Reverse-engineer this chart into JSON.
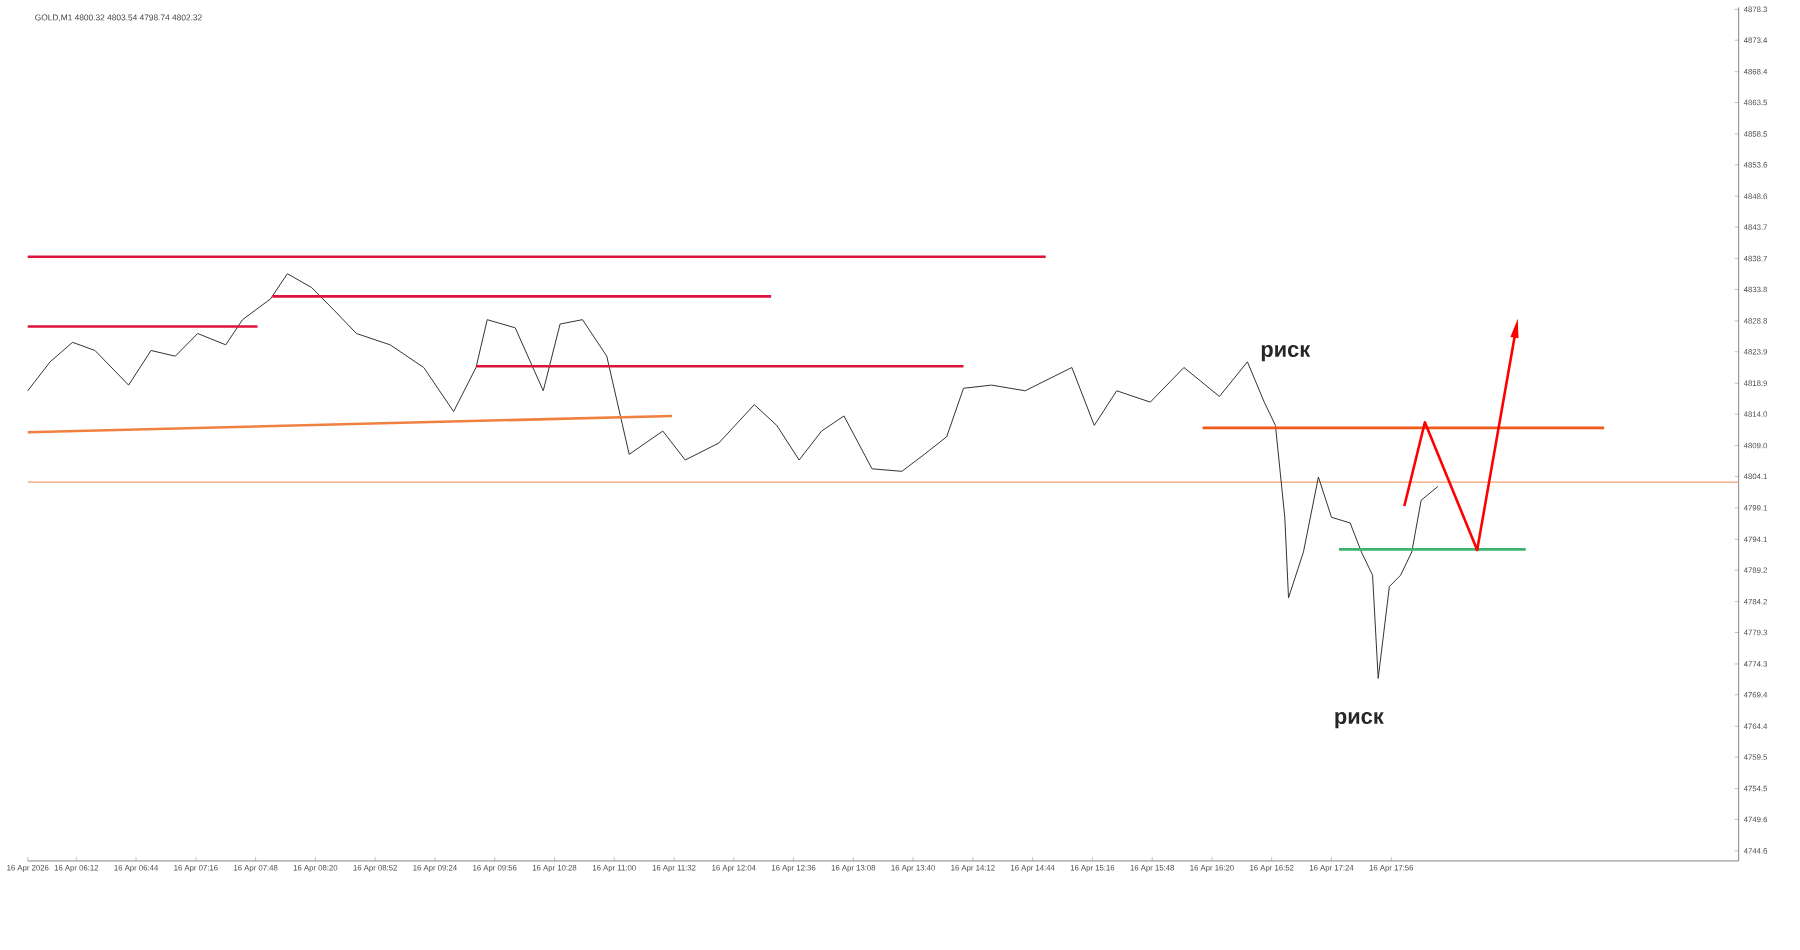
{
  "chart_data": {
    "type": "line",
    "title": "GOLD,M1 4800.32 4803.54 4798.74 4802.32",
    "xlim": [
      "2026-04-16T05:46",
      "2026-04-16T21:02"
    ],
    "ylim": [
      4743.0,
      4878.6
    ],
    "xticks": [
      {
        "value": "2026-04-16T05:46",
        "label": "16 Apr 2026"
      },
      {
        "value": "2026-04-16T06:12",
        "label": "16 Apr 06:12"
      },
      {
        "value": "2026-04-16T06:44",
        "label": "16 Apr 06:44"
      },
      {
        "value": "2026-04-16T07:16",
        "label": "16 Apr 07:16"
      },
      {
        "value": "2026-04-16T07:48",
        "label": "16 Apr 07:48"
      },
      {
        "value": "2026-04-16T08:20",
        "label": "16 Apr 08:20"
      },
      {
        "value": "2026-04-16T08:52",
        "label": "16 Apr 08:52"
      },
      {
        "value": "2026-04-16T09:24",
        "label": "16 Apr 09:24"
      },
      {
        "value": "2026-04-16T09:56",
        "label": "16 Apr 09:56"
      },
      {
        "value": "2026-04-16T10:28",
        "label": "16 Apr 10:28"
      },
      {
        "value": "2026-04-16T11:00",
        "label": "16 Apr 11:00"
      },
      {
        "value": "2026-04-16T11:32",
        "label": "16 Apr 11:32"
      },
      {
        "value": "2026-04-16T12:04",
        "label": "16 Apr 12:04"
      },
      {
        "value": "2026-04-16T12:36",
        "label": "16 Apr 12:36"
      },
      {
        "value": "2026-04-16T13:08",
        "label": "16 Apr 13:08"
      },
      {
        "value": "2026-04-16T13:40",
        "label": "16 Apr 13:40"
      },
      {
        "value": "2026-04-16T14:12",
        "label": "16 Apr 14:12"
      },
      {
        "value": "2026-04-16T14:44",
        "label": "16 Apr 14:44"
      },
      {
        "value": "2026-04-16T15:16",
        "label": "16 Apr 15:16"
      },
      {
        "value": "2026-04-16T15:48",
        "label": "16 Apr 15:48"
      },
      {
        "value": "2026-04-16T16:20",
        "label": "16 Apr 16:20"
      },
      {
        "value": "2026-04-16T16:52",
        "label": "16 Apr 16:52"
      },
      {
        "value": "2026-04-16T17:24",
        "label": "16 Apr 17:24"
      },
      {
        "value": "2026-04-16T17:56",
        "label": "16 Apr 17:56"
      }
    ],
    "yticks": [
      4744.6,
      4749.6,
      4754.5,
      4759.5,
      4764.4,
      4769.4,
      4774.3,
      4779.3,
      4784.2,
      4789.2,
      4794.1,
      4799.1,
      4804.1,
      {
        "value": 4809.0,
        "label": "4809.0"
      },
      {
        "value": 4814.0,
        "label": "4814.0"
      },
      4818.9,
      4823.9,
      4828.8,
      4833.8,
      4838.7,
      4843.7,
      4848.6,
      4853.6,
      4858.5,
      4863.5,
      4868.4,
      4873.4,
      4878.3
    ],
    "ref_lines": [
      {
        "axis": "y",
        "value": 4803.2,
        "color": "#f0a070"
      }
    ],
    "annotations": [
      "риск",
      "риск"
    ],
    "series": [
      {
        "color": "#333333",
        "x": [
          "2026-04-16T05:46",
          "2026-04-16T05:58",
          "2026-04-16T06:10",
          "2026-04-16T06:22",
          "2026-04-16T06:40",
          "2026-04-16T06:52",
          "2026-04-16T07:05",
          "2026-04-16T07:17",
          "2026-04-16T07:32",
          "2026-04-16T07:41",
          "2026-04-16T07:56",
          "2026-04-16T08:05",
          "2026-04-16T08:18",
          "2026-04-16T08:30",
          "2026-04-16T08:42",
          "2026-04-16T09:00",
          "2026-04-16T09:18",
          "2026-04-16T09:34",
          "2026-04-16T09:46",
          "2026-04-16T09:52",
          "2026-04-16T10:07",
          "2026-04-16T10:22",
          "2026-04-16T10:31",
          "2026-04-16T10:43",
          "2026-04-16T10:56",
          "2026-04-16T11:08",
          "2026-04-16T11:26",
          "2026-04-16T11:38",
          "2026-04-16T11:56",
          "2026-04-16T12:15",
          "2026-04-16T12:27",
          "2026-04-16T12:39",
          "2026-04-16T12:51",
          "2026-04-16T13:03",
          "2026-04-16T13:18",
          "2026-04-16T13:34",
          "2026-04-16T13:46",
          "2026-04-16T13:58",
          "2026-04-16T14:07",
          "2026-04-16T14:22",
          "2026-04-16T14:40",
          "2026-04-16T15:05",
          "2026-04-16T15:17",
          "2026-04-16T15:29",
          "2026-04-16T15:47",
          "2026-04-16T16:05",
          "2026-04-16T16:24",
          "2026-04-16T16:39",
          "2026-04-16T16:48",
          "2026-04-16T16:54",
          "2026-04-16T16:59",
          "2026-04-16T17:01",
          "2026-04-16T17:09",
          "2026-04-16T17:17",
          "2026-04-16T17:24",
          "2026-04-16T17:34",
          "2026-04-16T17:40",
          "2026-04-16T17:46",
          "2026-04-16T17:49",
          "2026-04-16T17:55",
          "2026-04-16T18:01",
          "2026-04-16T18:07",
          "2026-04-16T18:12",
          "2026-04-16T18:21"
        ],
        "values": [
          4817.7,
          4822.3,
          4825.4,
          4824.1,
          4818.6,
          4824.1,
          4823.2,
          4826.8,
          4825.0,
          4829.0,
          4832.3,
          4836.3,
          4834.1,
          4830.5,
          4826.8,
          4825.0,
          4821.4,
          4814.4,
          4821.4,
          4829.0,
          4827.7,
          4817.7,
          4828.3,
          4829.0,
          4823.2,
          4807.6,
          4811.3,
          4806.7,
          4809.4,
          4815.5,
          4812.2,
          4806.7,
          4811.3,
          4813.7,
          4805.3,
          4804.9,
          4807.6,
          4810.4,
          4818.1,
          4818.6,
          4817.7,
          4821.4,
          4812.2,
          4817.7,
          4815.9,
          4821.4,
          4816.8,
          4822.3,
          4815.9,
          4812.2,
          4797.6,
          4784.8,
          4792.1,
          4804.0,
          4797.6,
          4796.7,
          4792.1,
          4788.4,
          4772.0,
          4786.6,
          4788.4,
          4792.1,
          4800.3,
          4802.5
        ]
      },
      {
        "color": "#dc143c",
        "x": [
          "2026-04-16T05:46",
          "2026-04-16T14:51"
        ],
        "values": [
          4839.0,
          4839.0
        ]
      },
      {
        "color": "#dc143c",
        "x": [
          "2026-04-16T07:57",
          "2026-04-16T12:24"
        ],
        "values": [
          4832.7,
          4832.7
        ]
      },
      {
        "color": "#dc143c",
        "x": [
          "2026-04-16T05:46",
          "2026-04-16T07:49"
        ],
        "values": [
          4827.9,
          4827.9
        ]
      },
      {
        "color": "#dc143c",
        "x": [
          "2026-04-16T09:46",
          "2026-04-16T14:07"
        ],
        "values": [
          4821.6,
          4821.6
        ]
      },
      {
        "color": "#f08040",
        "x": [
          "2026-04-16T05:46",
          "2026-04-16T11:31"
        ],
        "values": [
          4811.1,
          4813.7
        ]
      },
      {
        "color": "#ee5a1a",
        "x": [
          "2026-04-16T16:15",
          "2026-04-16T19:50"
        ],
        "values": [
          4811.8,
          4811.8
        ]
      },
      {
        "color": "#3cb371",
        "x": [
          "2026-04-16T17:28",
          "2026-04-16T19:08"
        ],
        "values": [
          4792.5,
          4792.5
        ]
      },
      {
        "color": "#ff0000",
        "x": [
          "2026-04-16T18:03",
          "2026-04-16T18:14",
          "2026-04-16T18:42",
          "2026-04-16T19:03"
        ],
        "values": [
          4799.4,
          4812.7,
          4792.4,
          4827.9
        ]
      }
    ]
  }
}
